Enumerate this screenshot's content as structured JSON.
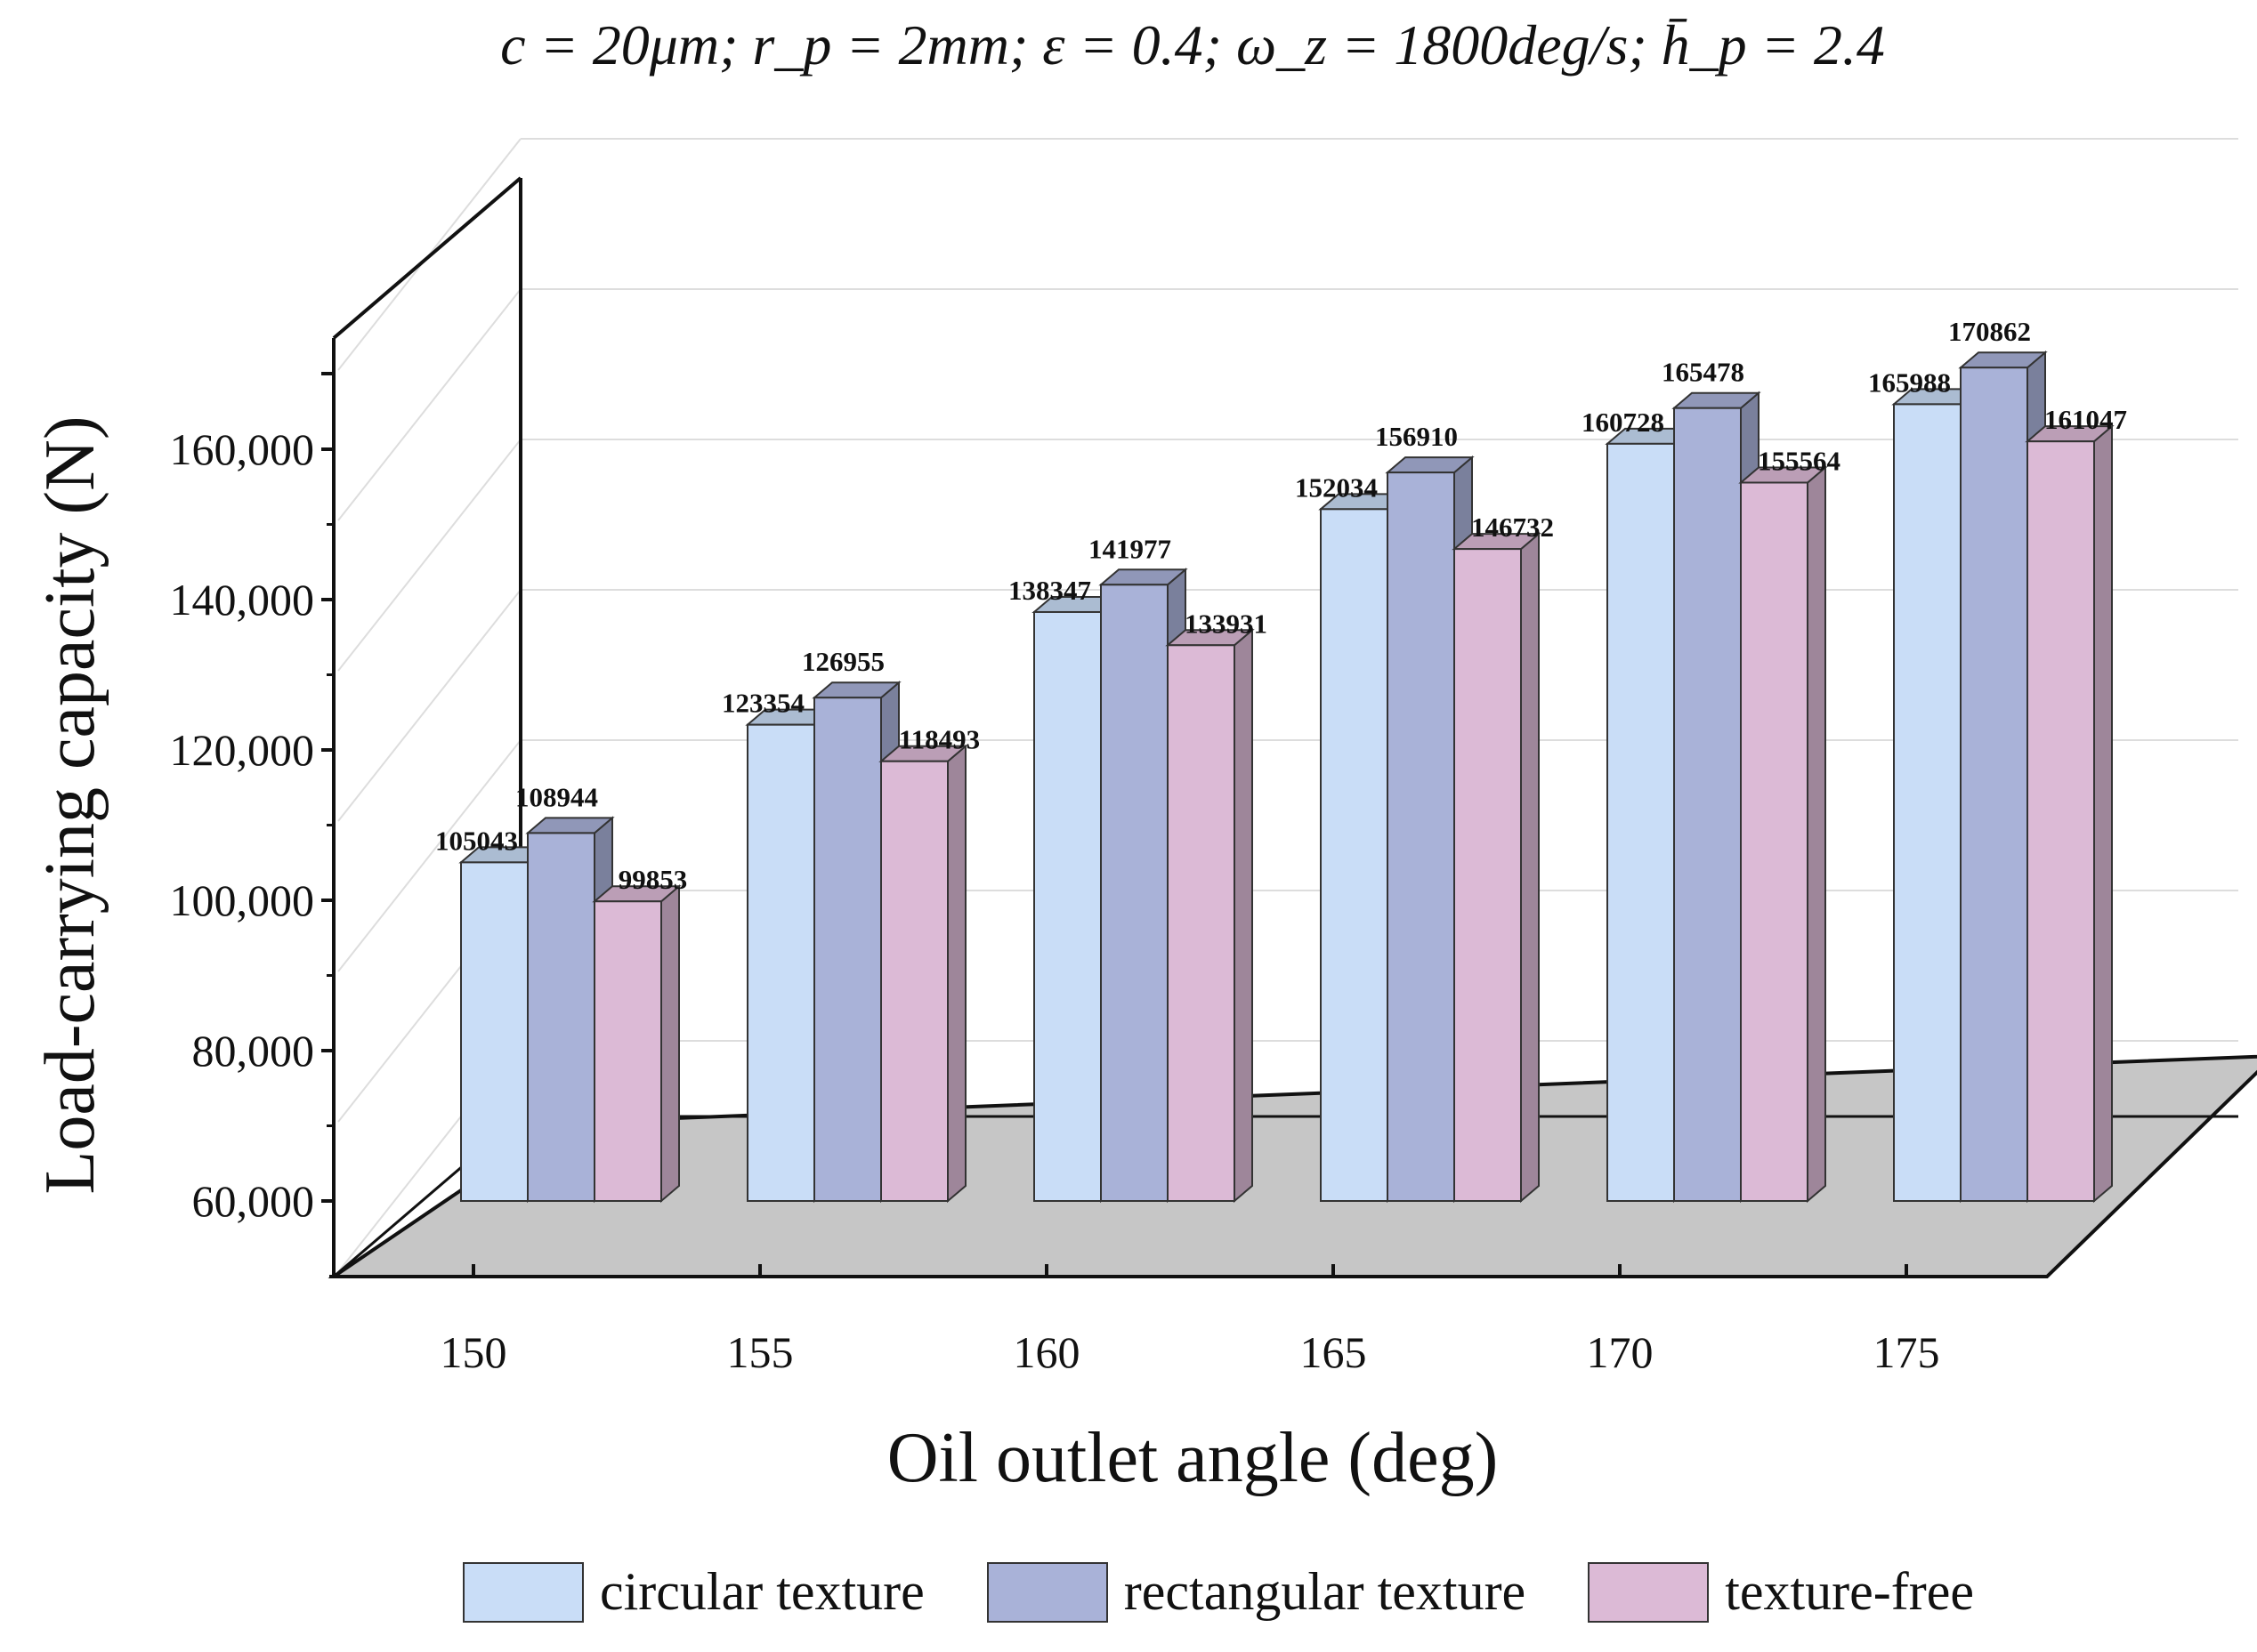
{
  "chart_data": {
    "type": "bar",
    "title": "c = 20μm; r_p = 2mm; ε = 0.4; ω_z = 1800deg/s; h̄_p = 2.4",
    "xlabel": "Oil outlet angle (deg)",
    "ylabel": "Load-carrying capacity (N)",
    "categories": [
      "150",
      "155",
      "160",
      "165",
      "170",
      "175"
    ],
    "ylim": [
      60000,
      170000
    ],
    "yticks": [
      60000,
      80000,
      100000,
      120000,
      140000,
      160000
    ],
    "ytick_labels": [
      "60,000",
      "80,000",
      "100,000",
      "120,000",
      "140,000",
      "160,000"
    ],
    "grid": true,
    "legend_position": "bottom",
    "series": [
      {
        "name": "circular texture",
        "color": "#c9ddf7",
        "values": [
          105043,
          123354,
          138347,
          152034,
          160728,
          165988
        ]
      },
      {
        "name": "rectangular texture",
        "color": "#a9b2d8",
        "values": [
          108944,
          126955,
          141977,
          156910,
          165478,
          170862
        ]
      },
      {
        "name": "texture-free",
        "color": "#dcbad6",
        "values": [
          99853,
          118493,
          133931,
          146732,
          155564,
          161047
        ]
      }
    ]
  }
}
